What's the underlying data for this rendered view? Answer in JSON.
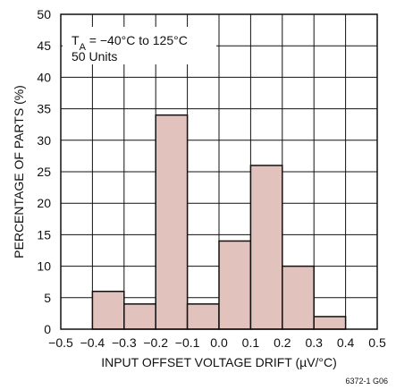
{
  "chart_data": {
    "type": "bar",
    "histogram": true,
    "bins": [
      {
        "from": -0.4,
        "to": -0.3,
        "value": 6
      },
      {
        "from": -0.3,
        "to": -0.2,
        "value": 4
      },
      {
        "from": -0.2,
        "to": -0.1,
        "value": 34
      },
      {
        "from": -0.1,
        "to": 0.0,
        "value": 4
      },
      {
        "from": 0.0,
        "to": 0.1,
        "value": 14
      },
      {
        "from": 0.1,
        "to": 0.2,
        "value": 26
      },
      {
        "from": 0.2,
        "to": 0.3,
        "value": 10
      },
      {
        "from": 0.3,
        "to": 0.4,
        "value": 2
      }
    ],
    "xlim": [
      -0.5,
      0.5
    ],
    "ylim": [
      0,
      50
    ],
    "xticks": [
      "−0.5",
      "−0.4",
      "−0.3",
      "−0.2",
      "−0.1",
      "0.0",
      "0.1",
      "0.2",
      "0.3",
      "0.4",
      "0.5"
    ],
    "yticks": [
      "0",
      "5",
      "10",
      "15",
      "20",
      "25",
      "30",
      "35",
      "40",
      "45",
      "50"
    ],
    "xlabel": "INPUT OFFSET VOLTAGE DRIFT (µV/°C)",
    "ylabel": "PERCENTAGE OF PARTS (%)",
    "grid": true,
    "bar_color": "#e2c2bd",
    "bar_edge_color": "#111111",
    "annotation": {
      "line1_symbol": "T",
      "line1_subscript": "A",
      "line1_rest": " = −40°C to 125°C",
      "line2": "50 Units"
    },
    "figure_id": "6372-1 G06"
  }
}
